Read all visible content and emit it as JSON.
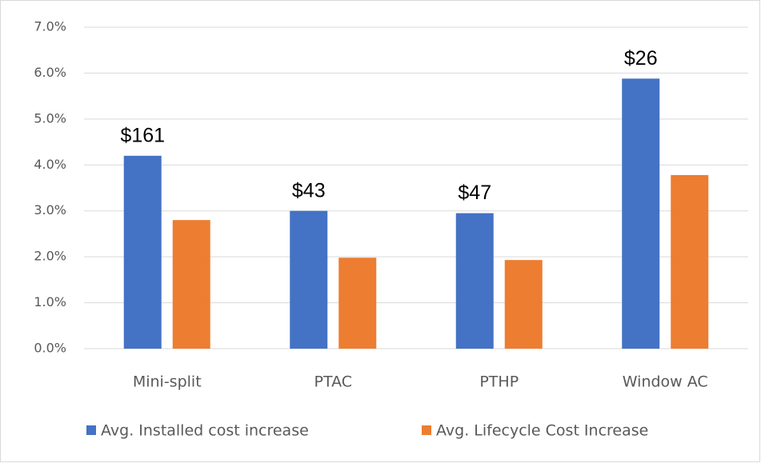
{
  "chart_data": {
    "type": "bar",
    "categories": [
      "Mini-split",
      "PTAC",
      "PTHP",
      "Window AC"
    ],
    "series": [
      {
        "name": "Avg. Installed cost increase",
        "color": "#4472c4",
        "values": [
          4.2,
          3.0,
          2.95,
          5.88
        ]
      },
      {
        "name": "Avg. Lifecycle Cost Increase",
        "color": "#ed7d31",
        "values": [
          2.8,
          1.98,
          1.93,
          3.78
        ]
      }
    ],
    "annotations": [
      "$161",
      "$43",
      "$47",
      "$26"
    ],
    "ylim": [
      0,
      7
    ],
    "yticks": [
      {
        "value": 0,
        "label": "0.0%"
      },
      {
        "value": 1,
        "label": "1.0%"
      },
      {
        "value": 2,
        "label": "2.0%"
      },
      {
        "value": 3,
        "label": "3.0%"
      },
      {
        "value": 4,
        "label": "4.0%"
      },
      {
        "value": 5,
        "label": "5.0%"
      },
      {
        "value": 6,
        "label": "6.0%"
      },
      {
        "value": 7,
        "label": "7.0%"
      }
    ],
    "grid": true,
    "legend": "bottom"
  }
}
